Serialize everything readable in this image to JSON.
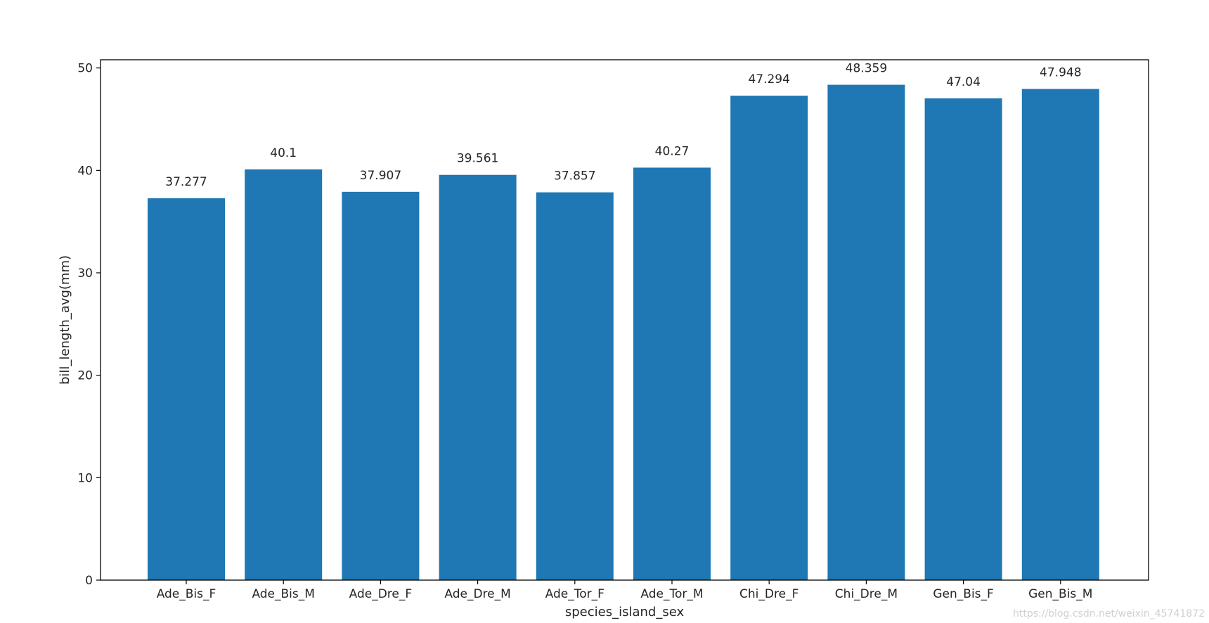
{
  "chart_data": {
    "type": "bar",
    "categories": [
      "Ade_Bis_F",
      "Ade_Bis_M",
      "Ade_Dre_F",
      "Ade_Dre_M",
      "Ade_Tor_F",
      "Ade_Tor_M",
      "Chi_Dre_F",
      "Chi_Dre_M",
      "Gen_Bis_F",
      "Gen_Bis_M"
    ],
    "values": [
      37.277,
      40.1,
      37.907,
      39.561,
      37.857,
      40.27,
      47.294,
      48.359,
      47.04,
      47.948
    ],
    "value_labels": [
      "37.277",
      "40.1",
      "37.907",
      "39.561",
      "37.857",
      "40.27",
      "47.294",
      "48.359",
      "47.04",
      "47.948"
    ],
    "xlabel": "species_island_sex",
    "ylabel": "bill_length_avg(mm)",
    "ylim": [
      0,
      50.8
    ],
    "yticks": [
      0,
      10,
      20,
      30,
      40,
      50
    ],
    "ytick_labels": [
      "0",
      "10",
      "20",
      "30",
      "40",
      "50"
    ],
    "grid": false,
    "bar_color": "#1f77b4"
  },
  "watermark": "https://blog.csdn.net/weixin_45741872"
}
